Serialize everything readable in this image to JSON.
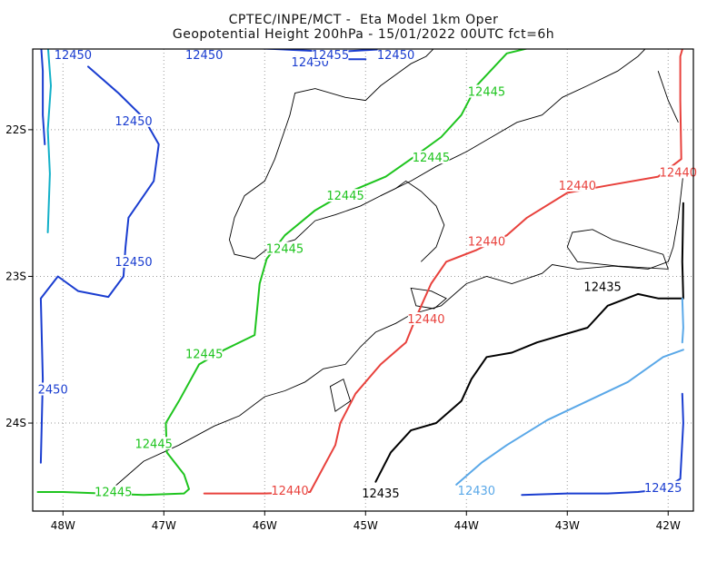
{
  "title_line1": "CPTEC/INPE/MCT -  Eta Model 1km Oper",
  "title_line2": "Geopotential Height 200hPa - 15/01/2022 00UTC fct=6h",
  "axes": {
    "x_ticks": [
      {
        "lon": -48,
        "label": "48W"
      },
      {
        "lon": -47,
        "label": "47W"
      },
      {
        "lon": -46,
        "label": "46W"
      },
      {
        "lon": -45,
        "label": "45W"
      },
      {
        "lon": -44,
        "label": "44W"
      },
      {
        "lon": -43,
        "label": "43W"
      },
      {
        "lon": -42,
        "label": "42W"
      }
    ],
    "y_ticks": [
      {
        "lat": -22,
        "label": "22S"
      },
      {
        "lat": -23,
        "label": "23S"
      },
      {
        "lat": -24,
        "label": "24S"
      }
    ],
    "lon_range": [
      -48.3,
      -41.75
    ],
    "lat_range": [
      -24.6,
      -21.45
    ],
    "grid": true,
    "grid_style": "dotted"
  },
  "colors": {
    "12455": "#1a3dd0",
    "12450_blue": "#1a3dd0",
    "12450_cyan": "#12b0c8",
    "12445": "#1ec41e",
    "12440": "#e8413c",
    "12435": "#000000",
    "12430": "#5aa8e8",
    "12425": "#1a3dd0",
    "coastline": "#000000",
    "frame": "#000000"
  },
  "contour_labels": [
    {
      "text": "12450",
      "lon": -47.9,
      "lat": -21.5,
      "color": "#1a3dd0"
    },
    {
      "text": "12450",
      "lon": -46.6,
      "lat": -21.5,
      "color": "#1a3dd0"
    },
    {
      "text": "12450",
      "lon": -45.55,
      "lat": -21.55,
      "color": "#1a3dd0"
    },
    {
      "text": "12455",
      "lon": -45.35,
      "lat": -21.5,
      "color": "#1a3dd0"
    },
    {
      "text": "12450",
      "lon": -44.7,
      "lat": -21.5,
      "color": "#1a3dd0"
    },
    {
      "text": "12450",
      "lon": -47.3,
      "lat": -21.95,
      "color": "#1a3dd0"
    },
    {
      "text": "12450",
      "lon": -47.3,
      "lat": -22.91,
      "color": "#1a3dd0"
    },
    {
      "text": "2450",
      "lon": -48.1,
      "lat": -23.78,
      "color": "#1a3dd0"
    },
    {
      "text": "12445",
      "lon": -43.8,
      "lat": -21.75,
      "color": "#1ec41e"
    },
    {
      "text": "12445",
      "lon": -44.35,
      "lat": -22.2,
      "color": "#1ec41e"
    },
    {
      "text": "12445",
      "lon": -45.2,
      "lat": -22.46,
      "color": "#1ec41e"
    },
    {
      "text": "12445",
      "lon": -45.8,
      "lat": -22.82,
      "color": "#1ec41e"
    },
    {
      "text": "12445",
      "lon": -46.6,
      "lat": -23.54,
      "color": "#1ec41e"
    },
    {
      "text": "12445",
      "lon": -47.1,
      "lat": -24.15,
      "color": "#1ec41e"
    },
    {
      "text": "12445",
      "lon": -47.5,
      "lat": -24.48,
      "color": "#1ec41e"
    },
    {
      "text": "12440",
      "lon": -42.9,
      "lat": -22.39,
      "color": "#e8413c"
    },
    {
      "text": "12440",
      "lon": -41.9,
      "lat": -22.3,
      "color": "#e8413c"
    },
    {
      "text": "12440",
      "lon": -43.8,
      "lat": -22.77,
      "color": "#e8413c"
    },
    {
      "text": "12440",
      "lon": -44.4,
      "lat": -23.3,
      "color": "#e8413c"
    },
    {
      "text": "12440",
      "lon": -45.75,
      "lat": -24.47,
      "color": "#e8413c"
    },
    {
      "text": "12435",
      "lon": -42.65,
      "lat": -23.08,
      "color": "#000000"
    },
    {
      "text": "12435",
      "lon": -44.85,
      "lat": -24.49,
      "color": "#000000"
    },
    {
      "text": "12430",
      "lon": -43.9,
      "lat": -24.47,
      "color": "#5aa8e8"
    },
    {
      "text": "12425",
      "lon": -42.05,
      "lat": -24.45,
      "color": "#1a3dd0"
    }
  ],
  "contours": [
    {
      "level": 12450,
      "color": "#1a3dd0",
      "points": [
        [
          -47.75,
          -21.57
        ],
        [
          -47.45,
          -21.75
        ],
        [
          -47.2,
          -21.92
        ],
        [
          -47.05,
          -22.1
        ],
        [
          -47.1,
          -22.35
        ],
        [
          -47.35,
          -22.6
        ],
        [
          -47.38,
          -22.8
        ],
        [
          -47.4,
          -23.0
        ],
        [
          -47.55,
          -23.14
        ],
        [
          -47.85,
          -23.1
        ],
        [
          -48.05,
          -23.0
        ],
        [
          -48.22,
          -23.15
        ],
        [
          -48.2,
          -23.7
        ],
        [
          -48.22,
          -24.27
        ]
      ]
    },
    {
      "level": 12450,
      "color": "#1a3dd0",
      "points": [
        [
          -48.22,
          -21.4
        ],
        [
          -48.2,
          -21.6
        ],
        [
          -48.2,
          -21.9
        ],
        [
          -48.18,
          -22.1
        ]
      ]
    },
    {
      "level": 12450,
      "color": "#12b0c8",
      "points": [
        [
          -48.15,
          -21.42
        ],
        [
          -48.12,
          -21.7
        ],
        [
          -48.15,
          -22.0
        ],
        [
          -48.13,
          -22.3
        ],
        [
          -48.15,
          -22.7
        ]
      ]
    },
    {
      "level": 12450,
      "color": "#1a3dd0",
      "points": [
        [
          -47.4,
          -21.42
        ],
        [
          -46.8,
          -21.42
        ],
        [
          -46.3,
          -21.44
        ],
        [
          -45.9,
          -21.45
        ],
        [
          -45.3,
          -21.47
        ],
        [
          -44.8,
          -21.45
        ],
        [
          -44.3,
          -21.43
        ]
      ]
    },
    {
      "level": 12450,
      "color": "#12b0c8",
      "points": [
        [
          -45.1,
          -21.44
        ],
        [
          -44.6,
          -21.44
        ],
        [
          -44.1,
          -21.43
        ]
      ]
    },
    {
      "level": 12455,
      "color": "#1a3dd0",
      "points": [
        [
          -45.7,
          -21.5
        ],
        [
          -45.5,
          -21.52
        ],
        [
          -45.0,
          -21.52
        ]
      ]
    },
    {
      "level": 12445,
      "color": "#1ec41e",
      "points": [
        [
          -43.3,
          -21.43
        ],
        [
          -43.6,
          -21.48
        ],
        [
          -43.9,
          -21.7
        ],
        [
          -44.05,
          -21.9
        ],
        [
          -44.25,
          -22.05
        ],
        [
          -44.55,
          -22.2
        ],
        [
          -44.8,
          -22.32
        ],
        [
          -45.25,
          -22.45
        ],
        [
          -45.5,
          -22.55
        ],
        [
          -45.8,
          -22.72
        ],
        [
          -45.98,
          -22.88
        ],
        [
          -46.05,
          -23.05
        ],
        [
          -46.1,
          -23.4
        ],
        [
          -46.4,
          -23.5
        ],
        [
          -46.65,
          -23.6
        ],
        [
          -46.85,
          -23.85
        ],
        [
          -46.98,
          -24.0
        ],
        [
          -46.97,
          -24.2
        ],
        [
          -46.8,
          -24.35
        ],
        [
          -46.75,
          -24.45
        ],
        [
          -46.8,
          -24.48
        ],
        [
          -47.2,
          -24.49
        ],
        [
          -47.6,
          -24.48
        ],
        [
          -48.0,
          -24.47
        ],
        [
          -48.25,
          -24.47
        ]
      ]
    },
    {
      "level": 12445,
      "color": "#1ec41e",
      "points": [
        [
          -43.3,
          -21.42
        ],
        [
          -43.0,
          -21.42
        ],
        [
          -42.8,
          -21.42
        ]
      ]
    },
    {
      "level": 12440,
      "color": "#e8413c",
      "points": [
        [
          -41.85,
          -21.43
        ],
        [
          -41.88,
          -21.5
        ],
        [
          -41.88,
          -21.8
        ],
        [
          -41.87,
          -22.2
        ],
        [
          -42.1,
          -22.32
        ],
        [
          -42.6,
          -22.38
        ],
        [
          -43.0,
          -22.43
        ],
        [
          -43.4,
          -22.6
        ],
        [
          -43.6,
          -22.72
        ],
        [
          -43.9,
          -22.82
        ],
        [
          -44.2,
          -22.9
        ],
        [
          -44.35,
          -23.05
        ],
        [
          -44.5,
          -23.28
        ],
        [
          -44.6,
          -23.45
        ],
        [
          -44.85,
          -23.6
        ],
        [
          -45.1,
          -23.8
        ],
        [
          -45.25,
          -24.0
        ],
        [
          -45.3,
          -24.15
        ],
        [
          -45.55,
          -24.47
        ],
        [
          -46.0,
          -24.48
        ],
        [
          -46.6,
          -24.48
        ]
      ]
    },
    {
      "level": 12440,
      "color": "#e8413c",
      "points": [
        [
          -42.5,
          -21.42
        ],
        [
          -42.1,
          -21.42
        ],
        [
          -41.85,
          -21.43
        ]
      ]
    },
    {
      "level": 12435,
      "color": "#000000",
      "points": [
        [
          -41.85,
          -22.5
        ],
        [
          -41.86,
          -22.9
        ],
        [
          -41.85,
          -23.15
        ],
        [
          -42.1,
          -23.15
        ],
        [
          -42.3,
          -23.12
        ],
        [
          -42.6,
          -23.2
        ],
        [
          -42.8,
          -23.35
        ],
        [
          -43.05,
          -23.4
        ],
        [
          -43.3,
          -23.45
        ],
        [
          -43.55,
          -23.52
        ],
        [
          -43.8,
          -23.55
        ],
        [
          -43.95,
          -23.7
        ],
        [
          -44.05,
          -23.85
        ],
        [
          -44.3,
          -24.0
        ],
        [
          -44.55,
          -24.05
        ],
        [
          -44.75,
          -24.2
        ],
        [
          -44.9,
          -24.4
        ]
      ]
    },
    {
      "level": 12430,
      "color": "#5aa8e8",
      "points": [
        [
          -41.85,
          -23.5
        ],
        [
          -42.05,
          -23.55
        ],
        [
          -42.4,
          -23.72
        ],
        [
          -42.8,
          -23.85
        ],
        [
          -43.2,
          -23.98
        ],
        [
          -43.6,
          -24.15
        ],
        [
          -43.85,
          -24.27
        ],
        [
          -44.1,
          -24.42
        ]
      ]
    },
    {
      "level": 12430,
      "color": "#5aa8e8",
      "points": [
        [
          -41.86,
          -23.15
        ],
        [
          -41.85,
          -23.35
        ],
        [
          -41.86,
          -23.45
        ]
      ]
    },
    {
      "level": 12425,
      "color": "#1a3dd0",
      "points": [
        [
          -43.45,
          -24.49
        ],
        [
          -43.0,
          -24.48
        ],
        [
          -42.6,
          -24.48
        ],
        [
          -42.3,
          -24.47
        ],
        [
          -42.05,
          -24.45
        ],
        [
          -41.88,
          -24.38
        ],
        [
          -41.85,
          -24.0
        ],
        [
          -41.86,
          -23.8
        ]
      ]
    }
  ],
  "coastline": [
    [
      [
        -47.6,
        -24.5
      ],
      [
        -47.4,
        -24.38
      ],
      [
        -47.2,
        -24.26
      ],
      [
        -46.85,
        -24.15
      ],
      [
        -46.5,
        -24.02
      ],
      [
        -46.25,
        -23.95
      ],
      [
        -46.0,
        -23.82
      ],
      [
        -45.8,
        -23.78
      ],
      [
        -45.6,
        -23.72
      ],
      [
        -45.42,
        -23.63
      ],
      [
        -45.2,
        -23.6
      ],
      [
        -45.05,
        -23.48
      ],
      [
        -44.9,
        -23.38
      ],
      [
        -44.7,
        -23.32
      ],
      [
        -44.55,
        -23.26
      ],
      [
        -44.25,
        -23.2
      ],
      [
        -44.0,
        -23.05
      ],
      [
        -43.8,
        -23.0
      ],
      [
        -43.55,
        -23.05
      ],
      [
        -43.25,
        -22.98
      ],
      [
        -43.15,
        -22.92
      ],
      [
        -42.9,
        -22.95
      ],
      [
        -42.55,
        -22.93
      ],
      [
        -42.2,
        -22.95
      ],
      [
        -42.0,
        -22.9
      ],
      [
        -41.95,
        -22.8
      ],
      [
        -41.9,
        -22.6
      ],
      [
        -41.85,
        -22.3
      ]
    ]
  ],
  "borders": [
    [
      [
        -44.3,
        -21.43
      ],
      [
        -44.4,
        -21.5
      ],
      [
        -44.55,
        -21.55
      ],
      [
        -44.65,
        -21.6
      ],
      [
        -44.85,
        -21.7
      ],
      [
        -45.0,
        -21.8
      ],
      [
        -45.2,
        -21.78
      ],
      [
        -45.5,
        -21.72
      ],
      [
        -45.7,
        -21.75
      ],
      [
        -45.75,
        -21.9
      ],
      [
        -45.8,
        -22.0
      ],
      [
        -45.9,
        -22.2
      ],
      [
        -46.0,
        -22.35
      ],
      [
        -46.2,
        -22.45
      ],
      [
        -46.3,
        -22.6
      ],
      [
        -46.35,
        -22.75
      ],
      [
        -46.3,
        -22.85
      ],
      [
        -46.1,
        -22.88
      ],
      [
        -45.95,
        -22.8
      ],
      [
        -45.7,
        -22.75
      ],
      [
        -45.5,
        -22.62
      ],
      [
        -45.3,
        -22.58
      ],
      [
        -45.05,
        -22.52
      ],
      [
        -44.85,
        -22.45
      ],
      [
        -44.7,
        -22.4
      ],
      [
        -44.6,
        -22.35
      ],
      [
        -44.45,
        -22.42
      ],
      [
        -44.3,
        -22.52
      ],
      [
        -44.22,
        -22.65
      ],
      [
        -44.3,
        -22.8
      ],
      [
        -44.45,
        -22.9
      ]
    ],
    [
      [
        -44.85,
        -22.45
      ],
      [
        -44.55,
        -22.35
      ],
      [
        -44.3,
        -22.25
      ],
      [
        -44.0,
        -22.15
      ],
      [
        -43.75,
        -22.05
      ],
      [
        -43.5,
        -21.95
      ],
      [
        -43.25,
        -21.9
      ],
      [
        -43.05,
        -21.78
      ],
      [
        -42.8,
        -21.7
      ],
      [
        -42.5,
        -21.6
      ],
      [
        -42.3,
        -21.5
      ],
      [
        -42.2,
        -21.43
      ]
    ],
    [
      [
        -42.1,
        -21.6
      ],
      [
        -42.0,
        -21.8
      ],
      [
        -41.9,
        -21.95
      ]
    ]
  ],
  "islands": [
    [
      [
        -44.55,
        -23.08
      ],
      [
        -44.35,
        -23.1
      ],
      [
        -44.2,
        -23.15
      ],
      [
        -44.32,
        -23.22
      ],
      [
        -44.5,
        -23.2
      ],
      [
        -44.55,
        -23.08
      ]
    ],
    [
      [
        -42.95,
        -22.7
      ],
      [
        -42.75,
        -22.68
      ],
      [
        -42.55,
        -22.75
      ],
      [
        -42.3,
        -22.8
      ],
      [
        -42.05,
        -22.85
      ],
      [
        -42.0,
        -22.95
      ],
      [
        -42.5,
        -22.93
      ],
      [
        -42.9,
        -22.9
      ],
      [
        -43.0,
        -22.8
      ],
      [
        -42.95,
        -22.7
      ]
    ],
    [
      [
        -45.35,
        -23.75
      ],
      [
        -45.22,
        -23.7
      ],
      [
        -45.15,
        -23.85
      ],
      [
        -45.3,
        -23.92
      ],
      [
        -45.35,
        -23.75
      ]
    ]
  ]
}
